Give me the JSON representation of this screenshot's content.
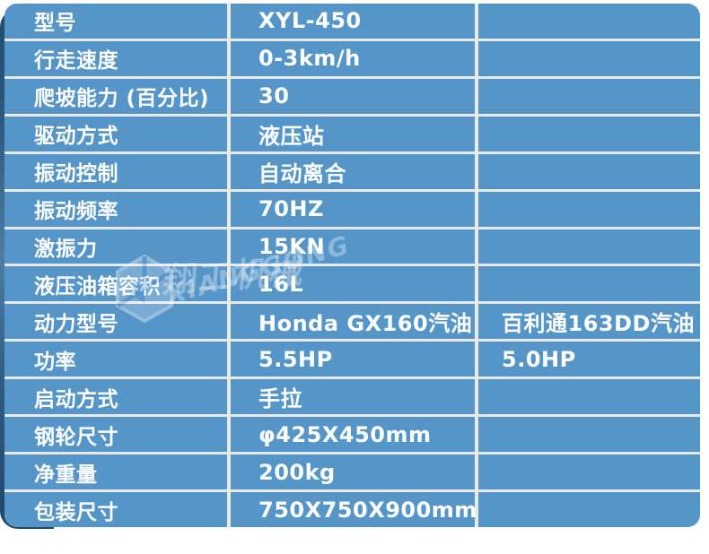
{
  "colors": {
    "table_blue": "#5695C8",
    "edge_navy": "#224A6E",
    "separator_line": "#E9EAE7",
    "page_background": "#FFFFFF",
    "text_white": "#FFFFFF"
  },
  "watermark": {
    "icon": "cube-logo-icon",
    "cn_text": "翔工机械",
    "en_text": "XIANGGONG"
  },
  "table": {
    "rows": [
      {
        "label": "型号",
        "value": "XYL-450",
        "extra": ""
      },
      {
        "label": "行走速度",
        "value": "0-3km/h",
        "extra": ""
      },
      {
        "label": "爬坡能力 (百分比)",
        "value": "30",
        "extra": ""
      },
      {
        "label": "驱动方式",
        "value": "液压站",
        "extra": ""
      },
      {
        "label": "振动控制",
        "value": "自动离合",
        "extra": ""
      },
      {
        "label": "振动频率",
        "value": "70HZ",
        "extra": ""
      },
      {
        "label": "激振力",
        "value": "15KN",
        "extra": ""
      },
      {
        "label": "液压油箱容积",
        "value": "16L",
        "extra": ""
      },
      {
        "label": "动力型号",
        "value": "Honda GX160汽油",
        "extra": "百利通163DD汽油"
      },
      {
        "label": "功率",
        "value": "5.5HP",
        "extra": "5.0HP"
      },
      {
        "label": "启动方式",
        "value": "手拉",
        "extra": ""
      },
      {
        "label": "钢轮尺寸",
        "value": "φ425X450mm",
        "extra": ""
      },
      {
        "label": "净重量",
        "value": "200kg",
        "extra": ""
      },
      {
        "label": "包装尺寸",
        "value": "750X750X900mm",
        "extra": ""
      }
    ]
  }
}
